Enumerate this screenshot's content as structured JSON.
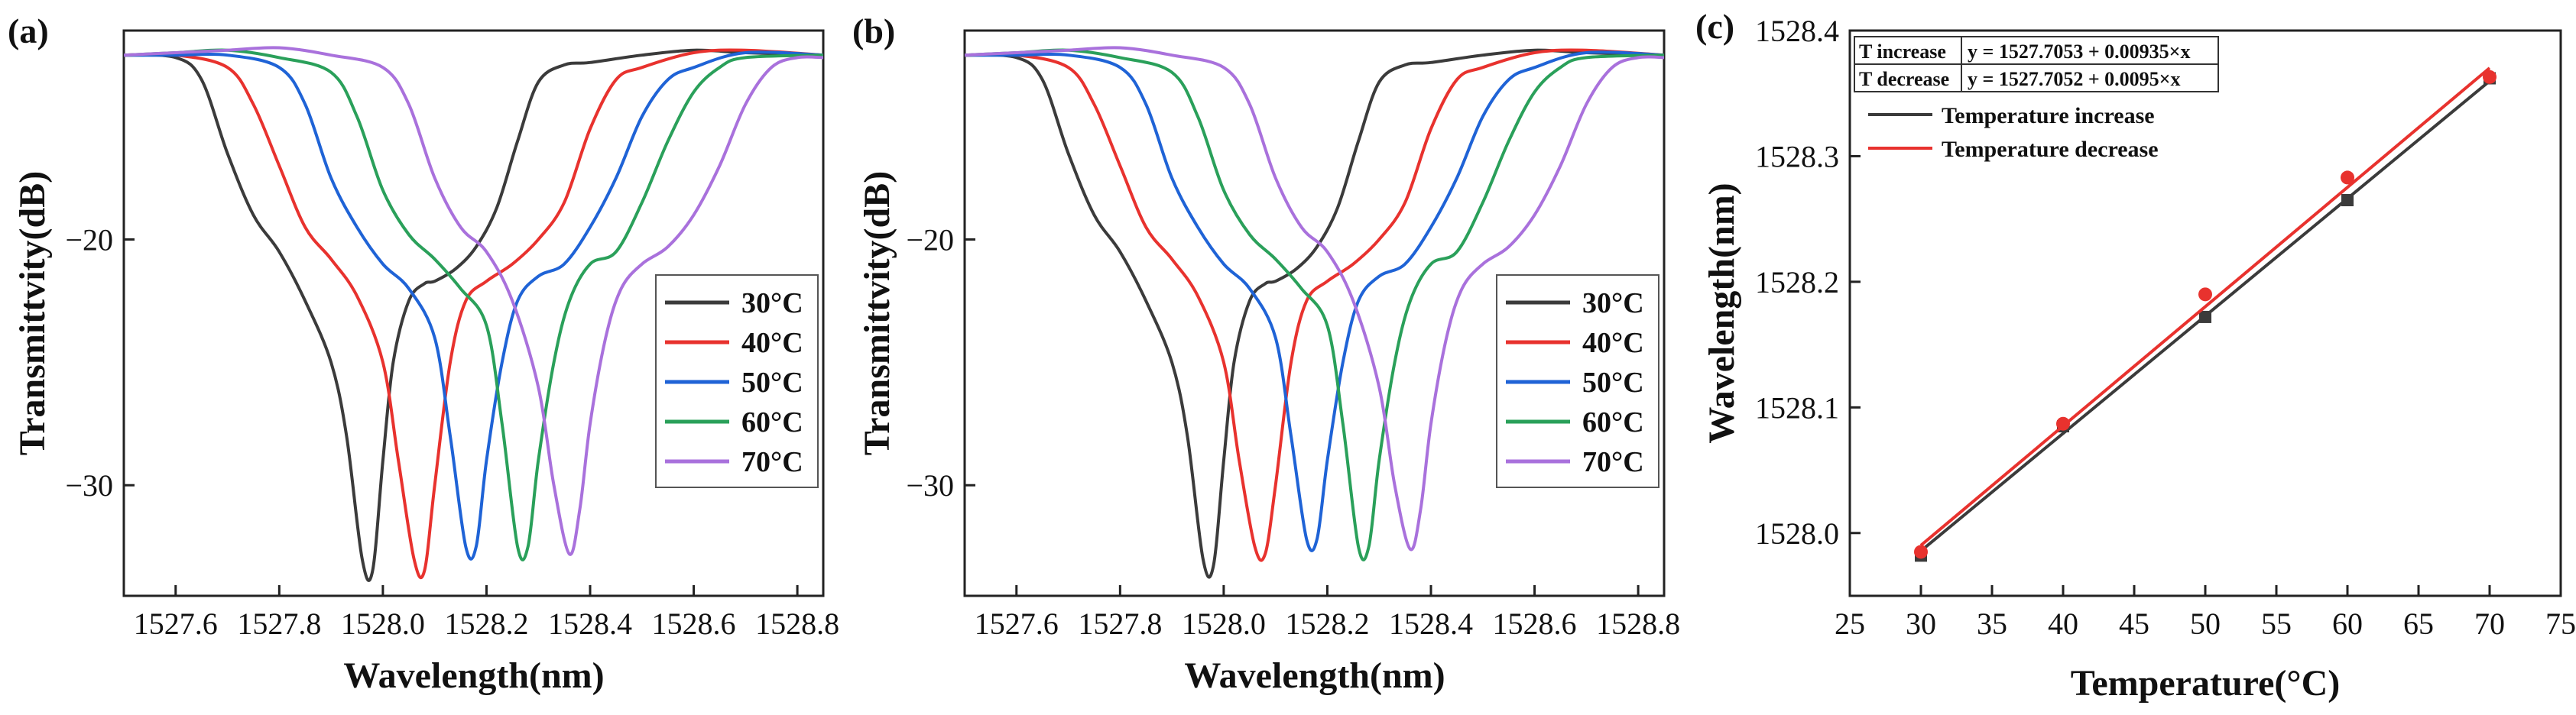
{
  "chart_data": [
    {
      "panel": "(a)",
      "type": "line",
      "title": "",
      "xlabel": "Wavelength(nm)",
      "ylabel": "Transmittvity(dB)",
      "xlim": [
        1527.5,
        1528.85
      ],
      "ylim": [
        -34.5,
        -11.5
      ],
      "xticks": [
        1527.6,
        1527.8,
        1528.0,
        1528.2,
        1528.4,
        1528.6,
        1528.8
      ],
      "xtick_labels": [
        "1527.6",
        "1527.8",
        "1528.0",
        "1528.2",
        "1528.4",
        "1528.6",
        "1528.8"
      ],
      "yticks": [
        -20,
        -30
      ],
      "ytick_labels": [
        "−20",
        "−30"
      ],
      "legend_position": "middle-right",
      "series": [
        {
          "name": "30°C",
          "color": "#3b3b3b",
          "x": [
            1527.5,
            1527.6,
            1527.65,
            1527.7,
            1527.75,
            1527.8,
            1527.85,
            1527.9,
            1527.93,
            1527.96,
            1527.98,
            1528.0,
            1528.02,
            1528.05,
            1528.08,
            1528.1,
            1528.14,
            1528.18,
            1528.22,
            1528.26,
            1528.3,
            1528.35,
            1528.4,
            1528.5,
            1528.6,
            1528.7,
            1528.85
          ],
          "y": [
            -12.5,
            -12.6,
            -13.5,
            -16.5,
            -19,
            -20.5,
            -22.5,
            -25,
            -28,
            -33,
            -33.5,
            -29,
            -25,
            -22.5,
            -21.8,
            -21.7,
            -21.2,
            -20.3,
            -18.7,
            -16,
            -13.6,
            -12.9,
            -12.8,
            -12.5,
            -12.3,
            -12.4,
            -12.5
          ]
        },
        {
          "name": "40°C",
          "color": "#e8322e",
          "x": [
            1527.5,
            1527.6,
            1527.7,
            1527.75,
            1527.8,
            1527.85,
            1527.9,
            1527.95,
            1528.0,
            1528.03,
            1528.06,
            1528.08,
            1528.1,
            1528.13,
            1528.16,
            1528.2,
            1528.25,
            1528.3,
            1528.35,
            1528.4,
            1528.45,
            1528.5,
            1528.6,
            1528.7,
            1528.85
          ],
          "y": [
            -12.5,
            -12.5,
            -13,
            -14.5,
            -17,
            -19.5,
            -20.8,
            -22.3,
            -25,
            -29,
            -33,
            -33.5,
            -30,
            -25,
            -22.5,
            -21.7,
            -21,
            -20,
            -18.5,
            -15.5,
            -13.5,
            -13,
            -12.4,
            -12.3,
            -12.5
          ]
        },
        {
          "name": "50°C",
          "color": "#1f63d6",
          "x": [
            1527.5,
            1527.6,
            1527.7,
            1527.8,
            1527.85,
            1527.9,
            1527.95,
            1528.0,
            1528.05,
            1528.1,
            1528.13,
            1528.16,
            1528.18,
            1528.2,
            1528.23,
            1528.26,
            1528.3,
            1528.35,
            1528.4,
            1528.45,
            1528.5,
            1528.55,
            1528.6,
            1528.7,
            1528.85
          ],
          "y": [
            -12.5,
            -12.5,
            -12.5,
            -13,
            -14.5,
            -17.5,
            -19.5,
            -21,
            -22,
            -24,
            -28,
            -32.5,
            -32.5,
            -29,
            -25,
            -22.5,
            -21.5,
            -21,
            -19.5,
            -17.5,
            -15,
            -13.5,
            -13,
            -12.4,
            -12.5
          ]
        },
        {
          "name": "60°C",
          "color": "#2aa05a",
          "x": [
            1527.5,
            1527.6,
            1527.7,
            1527.8,
            1527.9,
            1527.95,
            1528.0,
            1528.05,
            1528.1,
            1528.15,
            1528.2,
            1528.23,
            1528.26,
            1528.28,
            1528.3,
            1528.33,
            1528.36,
            1528.4,
            1528.45,
            1528.5,
            1528.55,
            1528.6,
            1528.65,
            1528.7,
            1528.85
          ],
          "y": [
            -12.5,
            -12.4,
            -12.3,
            -12.6,
            -13.2,
            -15,
            -18,
            -19.8,
            -20.8,
            -22,
            -23.5,
            -27.5,
            -32.5,
            -32.5,
            -29,
            -25,
            -22.5,
            -21,
            -20.5,
            -18.5,
            -16,
            -14,
            -13,
            -12.6,
            -12.5
          ]
        },
        {
          "name": "70°C",
          "color": "#a971dc",
          "x": [
            1527.5,
            1527.6,
            1527.7,
            1527.8,
            1527.9,
            1528.0,
            1528.05,
            1528.1,
            1528.15,
            1528.2,
            1528.25,
            1528.3,
            1528.33,
            1528.36,
            1528.38,
            1528.4,
            1528.43,
            1528.46,
            1528.5,
            1528.55,
            1528.6,
            1528.65,
            1528.7,
            1528.75,
            1528.8,
            1528.85
          ],
          "y": [
            -12.5,
            -12.4,
            -12.3,
            -12.2,
            -12.5,
            -13,
            -14.5,
            -17.5,
            -19.5,
            -20.5,
            -22.5,
            -26,
            -30,
            -32.8,
            -31,
            -27.5,
            -24,
            -22,
            -21,
            -20.3,
            -19,
            -17,
            -14.5,
            -13,
            -12.6,
            -12.6
          ]
        }
      ]
    },
    {
      "panel": "(b)",
      "type": "line",
      "title": "",
      "xlabel": "Wavelength(nm)",
      "ylabel": "Transmittvity(dB)",
      "xlim": [
        1527.5,
        1528.85
      ],
      "ylim": [
        -34.5,
        -11.5
      ],
      "xticks": [
        1527.6,
        1527.8,
        1528.0,
        1528.2,
        1528.4,
        1528.6,
        1528.8
      ],
      "xtick_labels": [
        "1527.6",
        "1527.8",
        "1528.0",
        "1528.2",
        "1528.4",
        "1528.6",
        "1528.8"
      ],
      "yticks": [
        -20,
        -30
      ],
      "ytick_labels": [
        "−20",
        "−30"
      ],
      "legend_position": "middle-right",
      "series": [
        {
          "name": "30°C",
          "color": "#3b3b3b",
          "x": [
            1527.5,
            1527.6,
            1527.65,
            1527.7,
            1527.75,
            1527.8,
            1527.85,
            1527.9,
            1527.93,
            1527.96,
            1527.98,
            1528.0,
            1528.02,
            1528.05,
            1528.08,
            1528.1,
            1528.14,
            1528.18,
            1528.22,
            1528.26,
            1528.3,
            1528.35,
            1528.4,
            1528.5,
            1528.6,
            1528.7,
            1528.85
          ],
          "y": [
            -12.5,
            -12.6,
            -13.5,
            -16.5,
            -19,
            -20.5,
            -22.5,
            -25,
            -28,
            -33,
            -33.3,
            -29,
            -25,
            -22.5,
            -21.8,
            -21.7,
            -21.2,
            -20.3,
            -18.7,
            -16,
            -13.6,
            -12.9,
            -12.8,
            -12.5,
            -12.3,
            -12.4,
            -12.5
          ]
        },
        {
          "name": "40°C",
          "color": "#e8322e",
          "x": [
            1527.5,
            1527.6,
            1527.7,
            1527.75,
            1527.8,
            1527.85,
            1527.9,
            1527.95,
            1528.0,
            1528.03,
            1528.06,
            1528.08,
            1528.1,
            1528.13,
            1528.16,
            1528.2,
            1528.25,
            1528.3,
            1528.35,
            1528.4,
            1528.45,
            1528.5,
            1528.6,
            1528.7,
            1528.85
          ],
          "y": [
            -12.5,
            -12.5,
            -13,
            -14.5,
            -17,
            -19.5,
            -20.8,
            -22.3,
            -25,
            -29,
            -32.5,
            -32.8,
            -30,
            -25,
            -22.5,
            -21.7,
            -21,
            -20,
            -18.5,
            -15.5,
            -13.5,
            -13,
            -12.4,
            -12.3,
            -12.5
          ]
        },
        {
          "name": "50°C",
          "color": "#1f63d6",
          "x": [
            1527.5,
            1527.6,
            1527.7,
            1527.8,
            1527.85,
            1527.9,
            1527.95,
            1528.0,
            1528.05,
            1528.1,
            1528.13,
            1528.16,
            1528.18,
            1528.2,
            1528.23,
            1528.26,
            1528.3,
            1528.35,
            1528.4,
            1528.45,
            1528.5,
            1528.55,
            1528.6,
            1528.7,
            1528.85
          ],
          "y": [
            -12.5,
            -12.5,
            -12.5,
            -13,
            -14.5,
            -17.5,
            -19.5,
            -21,
            -22,
            -24,
            -28,
            -32.2,
            -32.2,
            -29,
            -25,
            -22.5,
            -21.5,
            -21,
            -19.5,
            -17.5,
            -15,
            -13.5,
            -13,
            -12.4,
            -12.5
          ]
        },
        {
          "name": "60°C",
          "color": "#2aa05a",
          "x": [
            1527.5,
            1527.6,
            1527.7,
            1527.8,
            1527.9,
            1527.95,
            1528.0,
            1528.05,
            1528.1,
            1528.15,
            1528.2,
            1528.23,
            1528.26,
            1528.28,
            1528.3,
            1528.33,
            1528.36,
            1528.4,
            1528.45,
            1528.5,
            1528.55,
            1528.6,
            1528.65,
            1528.7,
            1528.85
          ],
          "y": [
            -12.5,
            -12.4,
            -12.3,
            -12.6,
            -13.2,
            -15,
            -18,
            -19.8,
            -20.8,
            -22,
            -23.5,
            -27.5,
            -32.5,
            -32.5,
            -29,
            -25,
            -22.5,
            -21,
            -20.5,
            -18.5,
            -16,
            -14,
            -13,
            -12.6,
            -12.5
          ]
        },
        {
          "name": "70°C",
          "color": "#a971dc",
          "x": [
            1527.5,
            1527.6,
            1527.7,
            1527.8,
            1527.9,
            1528.0,
            1528.05,
            1528.1,
            1528.15,
            1528.2,
            1528.25,
            1528.3,
            1528.33,
            1528.36,
            1528.38,
            1528.4,
            1528.43,
            1528.46,
            1528.5,
            1528.55,
            1528.6,
            1528.65,
            1528.7,
            1528.75,
            1528.8,
            1528.85
          ],
          "y": [
            -12.5,
            -12.4,
            -12.3,
            -12.2,
            -12.5,
            -13,
            -14.5,
            -17.5,
            -19.5,
            -20.5,
            -22.5,
            -26,
            -30,
            -32.6,
            -31,
            -27.5,
            -24,
            -22,
            -21,
            -20.3,
            -19,
            -17,
            -14.5,
            -13,
            -12.6,
            -12.6
          ]
        }
      ]
    },
    {
      "panel": "(c)",
      "type": "scatter",
      "title": "",
      "xlabel": "Temperature(°C)",
      "ylabel": "Wavelength(nm)",
      "xlim": [
        25,
        75
      ],
      "ylim": [
        1527.95,
        1528.4
      ],
      "xticks": [
        25,
        30,
        35,
        40,
        45,
        50,
        55,
        60,
        65,
        70,
        75
      ],
      "xtick_labels": [
        "25",
        "30",
        "35",
        "40",
        "45",
        "50",
        "55",
        "60",
        "65",
        "70",
        "75"
      ],
      "yticks": [
        1528.0,
        1528.1,
        1528.2,
        1528.3,
        1528.4
      ],
      "ytick_labels": [
        "1528.0",
        "1528.1",
        "1528.2",
        "1528.3",
        "1528.4"
      ],
      "fit_table": [
        {
          "label": "T increase",
          "equation": "y = 1527.7053 + 0.00935×x"
        },
        {
          "label": "T decrease",
          "equation": "y = 1527.7052 + 0.0095×x"
        }
      ],
      "legend_position": "top-left",
      "series": [
        {
          "name": "Temperature increase",
          "color": "#3b3b3b",
          "marker": "square",
          "x": [
            30,
            40,
            50,
            60,
            70
          ],
          "y": [
            1527.982,
            1528.085,
            1528.172,
            1528.265,
            1528.362
          ],
          "fit": {
            "intercept": 1527.7053,
            "slope": 0.00935
          }
        },
        {
          "name": "Temperature decrease",
          "color": "#e8322e",
          "marker": "circle",
          "x": [
            30,
            40,
            50,
            60,
            70
          ],
          "y": [
            1527.985,
            1528.087,
            1528.19,
            1528.283,
            1528.363
          ],
          "fit": {
            "intercept": 1527.7052,
            "slope": 0.0095
          }
        }
      ]
    }
  ]
}
